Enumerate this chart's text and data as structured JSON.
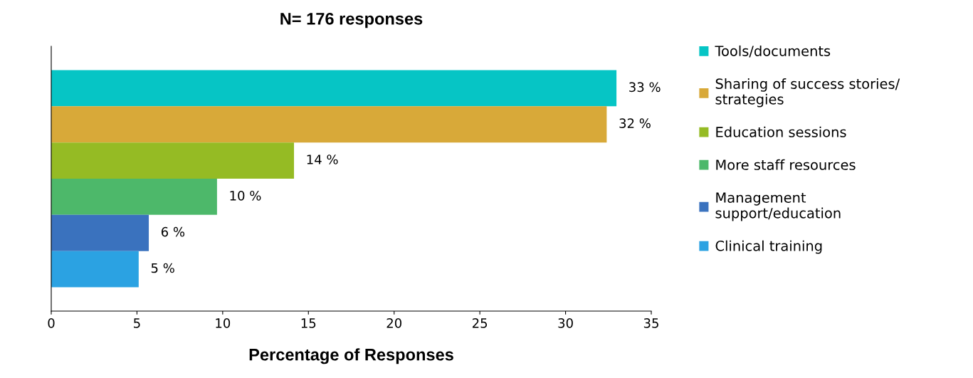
{
  "chart_data": {
    "type": "bar",
    "orientation": "horizontal",
    "title": "N= 176 responses",
    "xlabel": "Percentage of Responses",
    "categories": [
      null
    ],
    "series": [
      {
        "name": "Tools/documents",
        "color": "#06c5c5",
        "values": [
          32.97
        ],
        "value_labels": [
          "33 %"
        ]
      },
      {
        "name": "Sharing of success stories/\nstrategies",
        "color": "#d8a939",
        "values": [
          32.4
        ],
        "value_labels": [
          "32 %"
        ]
      },
      {
        "name": "Education sessions",
        "color": "#95bb24",
        "values": [
          14.16
        ],
        "value_labels": [
          "14 %"
        ]
      },
      {
        "name": "More staff resources",
        "color": "#4db86a",
        "values": [
          9.67
        ],
        "value_labels": [
          "10 %"
        ]
      },
      {
        "name": "Management\nsupport/education",
        "color": "#3a72be",
        "values": [
          5.69
        ],
        "value_labels": [
          "6 %"
        ]
      },
      {
        "name": "Clinical training",
        "color": "#2ba2e2",
        "values": [
          5.1
        ],
        "value_labels": [
          "5 %"
        ]
      }
    ],
    "xlim": [
      0,
      35
    ],
    "xticks": [
      0,
      5,
      10,
      15,
      20,
      25,
      30,
      35
    ],
    "grid": false,
    "legend": "right"
  }
}
